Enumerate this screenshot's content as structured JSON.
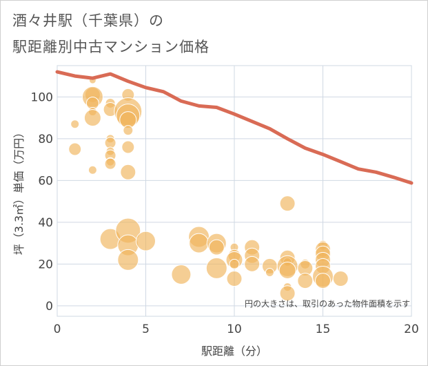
{
  "title_line1": "酒々井駅（千葉県）の",
  "title_line2": "駅距離別中古マンション価格",
  "chart_data": {
    "type": "scatter",
    "xlabel": "駅距離（分）",
    "ylabel": "坪（3.3㎡）単価（万円）",
    "xlim": [
      0,
      20
    ],
    "ylim": [
      -5,
      115
    ],
    "x_ticks": [
      "0",
      "5",
      "10",
      "15",
      "20"
    ],
    "y_ticks": [
      "0",
      "20",
      "40",
      "60",
      "80",
      "100"
    ],
    "grid": true,
    "annotation": "円の大きさは、取引のあった物件面積を示す",
    "colors": {
      "bubble": "#f0b45a",
      "line": "#d96b55",
      "grid": "#cfd8e3"
    },
    "points": [
      {
        "x": 1,
        "y": 87,
        "s": 6
      },
      {
        "x": 1,
        "y": 75,
        "s": 9
      },
      {
        "x": 2,
        "y": 108,
        "s": 5
      },
      {
        "x": 2,
        "y": 101,
        "s": 11
      },
      {
        "x": 2,
        "y": 100,
        "s": 15
      },
      {
        "x": 2,
        "y": 97,
        "s": 9
      },
      {
        "x": 2,
        "y": 93,
        "s": 6
      },
      {
        "x": 2,
        "y": 90,
        "s": 12
      },
      {
        "x": 2,
        "y": 65,
        "s": 6
      },
      {
        "x": 3,
        "y": 97,
        "s": 7
      },
      {
        "x": 3,
        "y": 94,
        "s": 10
      },
      {
        "x": 3,
        "y": 80,
        "s": 6
      },
      {
        "x": 3,
        "y": 78,
        "s": 8
      },
      {
        "x": 3,
        "y": 74,
        "s": 6
      },
      {
        "x": 3,
        "y": 72,
        "s": 8
      },
      {
        "x": 3,
        "y": 69,
        "s": 6
      },
      {
        "x": 3,
        "y": 68,
        "s": 8
      },
      {
        "x": 3,
        "y": 32,
        "s": 15
      },
      {
        "x": 4,
        "y": 101,
        "s": 9
      },
      {
        "x": 4,
        "y": 93,
        "s": 20
      },
      {
        "x": 4,
        "y": 91,
        "s": 17
      },
      {
        "x": 4,
        "y": 89,
        "s": 12
      },
      {
        "x": 4,
        "y": 84,
        "s": 7
      },
      {
        "x": 4,
        "y": 76,
        "s": 9
      },
      {
        "x": 4,
        "y": 64,
        "s": 11
      },
      {
        "x": 4,
        "y": 36,
        "s": 18
      },
      {
        "x": 4,
        "y": 29,
        "s": 15
      },
      {
        "x": 4,
        "y": 22,
        "s": 15
      },
      {
        "x": 5,
        "y": 31,
        "s": 14
      },
      {
        "x": 7,
        "y": 15,
        "s": 14
      },
      {
        "x": 8,
        "y": 33,
        "s": 15
      },
      {
        "x": 8,
        "y": 30,
        "s": 14
      },
      {
        "x": 9,
        "y": 30,
        "s": 14
      },
      {
        "x": 9,
        "y": 28,
        "s": 11
      },
      {
        "x": 9,
        "y": 18,
        "s": 15
      },
      {
        "x": 10,
        "y": 28,
        "s": 6
      },
      {
        "x": 10,
        "y": 24,
        "s": 9
      },
      {
        "x": 10,
        "y": 22,
        "s": 12
      },
      {
        "x": 10,
        "y": 20,
        "s": 7
      },
      {
        "x": 10,
        "y": 13,
        "s": 11
      },
      {
        "x": 11,
        "y": 28,
        "s": 11
      },
      {
        "x": 11,
        "y": 24,
        "s": 11
      },
      {
        "x": 11,
        "y": 20,
        "s": 11
      },
      {
        "x": 12,
        "y": 19,
        "s": 11
      },
      {
        "x": 12,
        "y": 16,
        "s": 6
      },
      {
        "x": 13,
        "y": 49,
        "s": 11
      },
      {
        "x": 13,
        "y": 23,
        "s": 11
      },
      {
        "x": 13,
        "y": 21,
        "s": 6
      },
      {
        "x": 13,
        "y": 19,
        "s": 15
      },
      {
        "x": 13,
        "y": 17,
        "s": 12
      },
      {
        "x": 13,
        "y": 9,
        "s": 6
      },
      {
        "x": 13,
        "y": 6,
        "s": 11
      },
      {
        "x": 14,
        "y": 20,
        "s": 7
      },
      {
        "x": 14,
        "y": 18,
        "s": 11
      },
      {
        "x": 14,
        "y": 12,
        "s": 11
      },
      {
        "x": 15,
        "y": 29,
        "s": 7
      },
      {
        "x": 15,
        "y": 27,
        "s": 11
      },
      {
        "x": 15,
        "y": 25,
        "s": 11
      },
      {
        "x": 15,
        "y": 22,
        "s": 11
      },
      {
        "x": 15,
        "y": 19,
        "s": 11
      },
      {
        "x": 15,
        "y": 14,
        "s": 15
      },
      {
        "x": 15,
        "y": 12,
        "s": 11
      },
      {
        "x": 16,
        "y": 13,
        "s": 11
      }
    ],
    "trend_line": {
      "x": [
        0,
        1,
        2,
        3,
        4,
        5,
        6,
        7,
        8,
        9,
        10,
        11,
        12,
        13,
        14,
        15,
        16,
        17,
        18,
        19,
        20
      ],
      "y": [
        112,
        110,
        109,
        111,
        107.5,
        104.5,
        102.5,
        98,
        95.7,
        95,
        91.8,
        88.3,
        84.8,
        80,
        75.5,
        72.5,
        69,
        65.5,
        64,
        61.5,
        58.8
      ]
    }
  }
}
